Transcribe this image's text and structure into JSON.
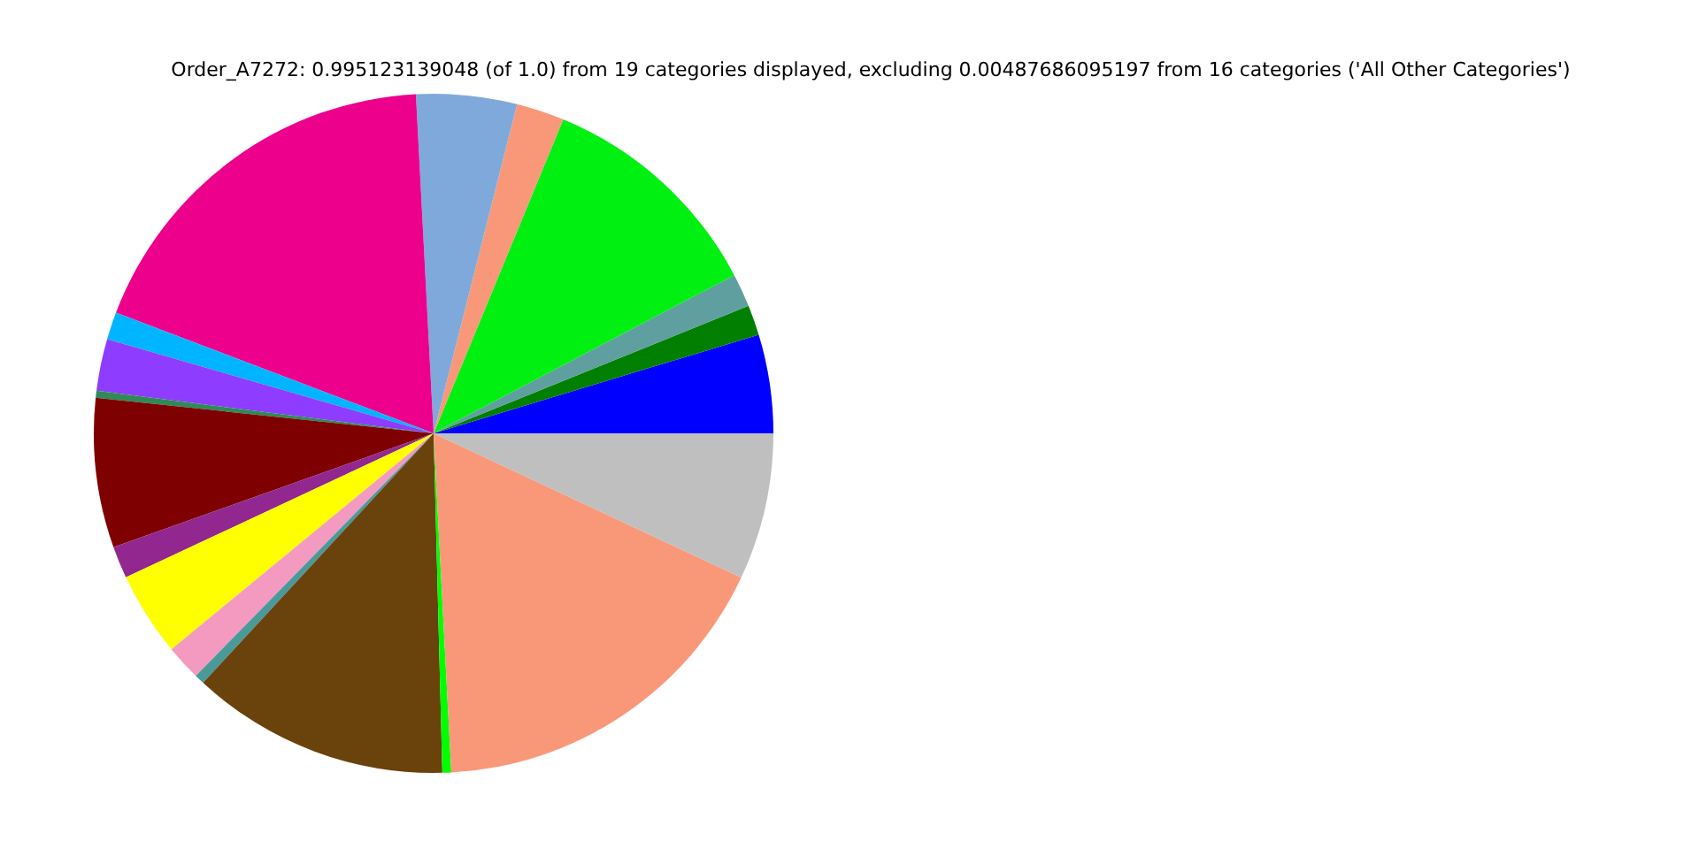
{
  "chart_data": {
    "type": "pie",
    "title": "Order_A7272: 0.995123139048 (of 1.0) from 19 categories displayed, excluding 0.00487686095197 from 16 categories ('All Other Categories')",
    "categories": [
      null,
      null,
      null,
      null,
      null,
      null,
      null,
      null,
      null,
      null,
      null,
      null,
      null,
      null,
      null,
      null,
      null,
      null,
      null
    ],
    "values": [
      4.69,
      1.44,
      1.58,
      11.06,
      2.28,
      4.78,
      18.39,
      1.31,
      2.47,
      0.33,
      7.11,
      1.53,
      4.0,
      1.69,
      0.47,
      12.28,
      0.42,
      17.19,
      6.98
    ],
    "colors": [
      "#0000ff",
      "#007f00",
      "#5f9f9f",
      "#00f012",
      "#f99879",
      "#7fa9da",
      "#ec008c",
      "#00b5ff",
      "#8e3cff",
      "#2e8b57",
      "#7f0000",
      "#92278f",
      "#ffff00",
      "#f49ac1",
      "#4a9a9a",
      "#6a420b",
      "#00ff00",
      "#f99879",
      "#bfbfbf"
    ]
  }
}
